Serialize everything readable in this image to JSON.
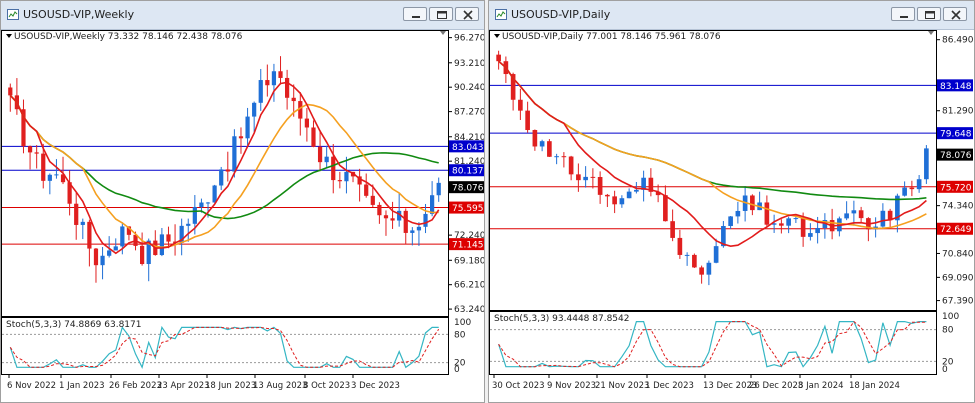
{
  "windows": [
    {
      "id": "weekly",
      "title": "USOUSD-VIP,Weekly",
      "info": "USOUSD-VIP,Weekly  73.332 78.146 72.438 78.076",
      "price_ticks": [
        "96.270",
        "93.210",
        "90.240",
        "87.270",
        "84.210",
        "81.240",
        "78.076",
        "75.595",
        "72.240",
        "71.145",
        "69.180",
        "66.210",
        "63.240"
      ],
      "tick_values": [
        96.27,
        93.21,
        90.24,
        87.27,
        84.21,
        81.24,
        72.24,
        69.18,
        66.21,
        63.24
      ],
      "hlines": [
        {
          "value": 83.043,
          "label": "83.043",
          "color": "#0000cc"
        },
        {
          "value": 80.137,
          "label": "80.137",
          "color": "#0000cc"
        },
        {
          "value": 75.595,
          "label": "75.595",
          "color": "#dd0000"
        },
        {
          "value": 71.145,
          "label": "71.145",
          "color": "#dd0000"
        }
      ],
      "current_price": {
        "value": 78.076,
        "label": "78.076"
      },
      "date_labels": [
        "6 Nov 2022",
        "1 Jan 2023",
        "26 Feb 2023",
        "23 Apr 2023",
        "18 Jun 2023",
        "13 Aug 2023",
        "8 Oct 2023",
        "3 Dec 2023"
      ],
      "stoch_label": "Stoch(5,3,3) 74.8869 63.8171",
      "stoch_levels": [
        "100",
        "80",
        "20",
        "0"
      ]
    },
    {
      "id": "daily",
      "title": "USOUSD-VIP,Daily",
      "info": "USOUSD-VIP,Daily  77.001 78.146 75.961 78.076",
      "price_ticks": [
        "86.490",
        "83.148",
        "81.290",
        "79.648",
        "78.076",
        "75.720",
        "74.340",
        "72.649",
        "70.840",
        "69.090",
        "67.390"
      ],
      "tick_values": [
        86.49,
        81.29,
        74.34,
        70.84,
        69.09,
        67.39
      ],
      "hlines": [
        {
          "value": 83.148,
          "label": "83.148",
          "color": "#0000cc"
        },
        {
          "value": 79.648,
          "label": "79.648",
          "color": "#0000cc"
        },
        {
          "value": 75.72,
          "label": "75.720",
          "color": "#dd0000"
        },
        {
          "value": 72.649,
          "label": "72.649",
          "color": "#dd0000"
        }
      ],
      "current_price": {
        "value": 78.076,
        "label": "78.076"
      },
      "date_labels": [
        "30 Oct 2023",
        "9 Nov 2023",
        "21 Nov 2023",
        "1 Dec 2023",
        "13 Dec 2023",
        "26 Dec 2023",
        "8 Jan 2024",
        "18 Jan 2024"
      ],
      "stoch_label": "Stoch(5,3,3) 93.4448 87.8542",
      "stoch_levels": [
        "100",
        "80",
        "20",
        "0"
      ]
    }
  ],
  "colors": {
    "bull": "#1f6fd6",
    "bear": "#e01f1f",
    "ma_fast": "#e21b1b",
    "ma_mid": "#f5a020",
    "ma_slow": "#118a11",
    "stoch_main": "#35b6c4",
    "stoch_signal": "#e02020",
    "resistance": "#0000cc",
    "support": "#dd0000"
  },
  "window_buttons": [
    "minimize-icon",
    "restore-icon",
    "close-icon"
  ]
}
